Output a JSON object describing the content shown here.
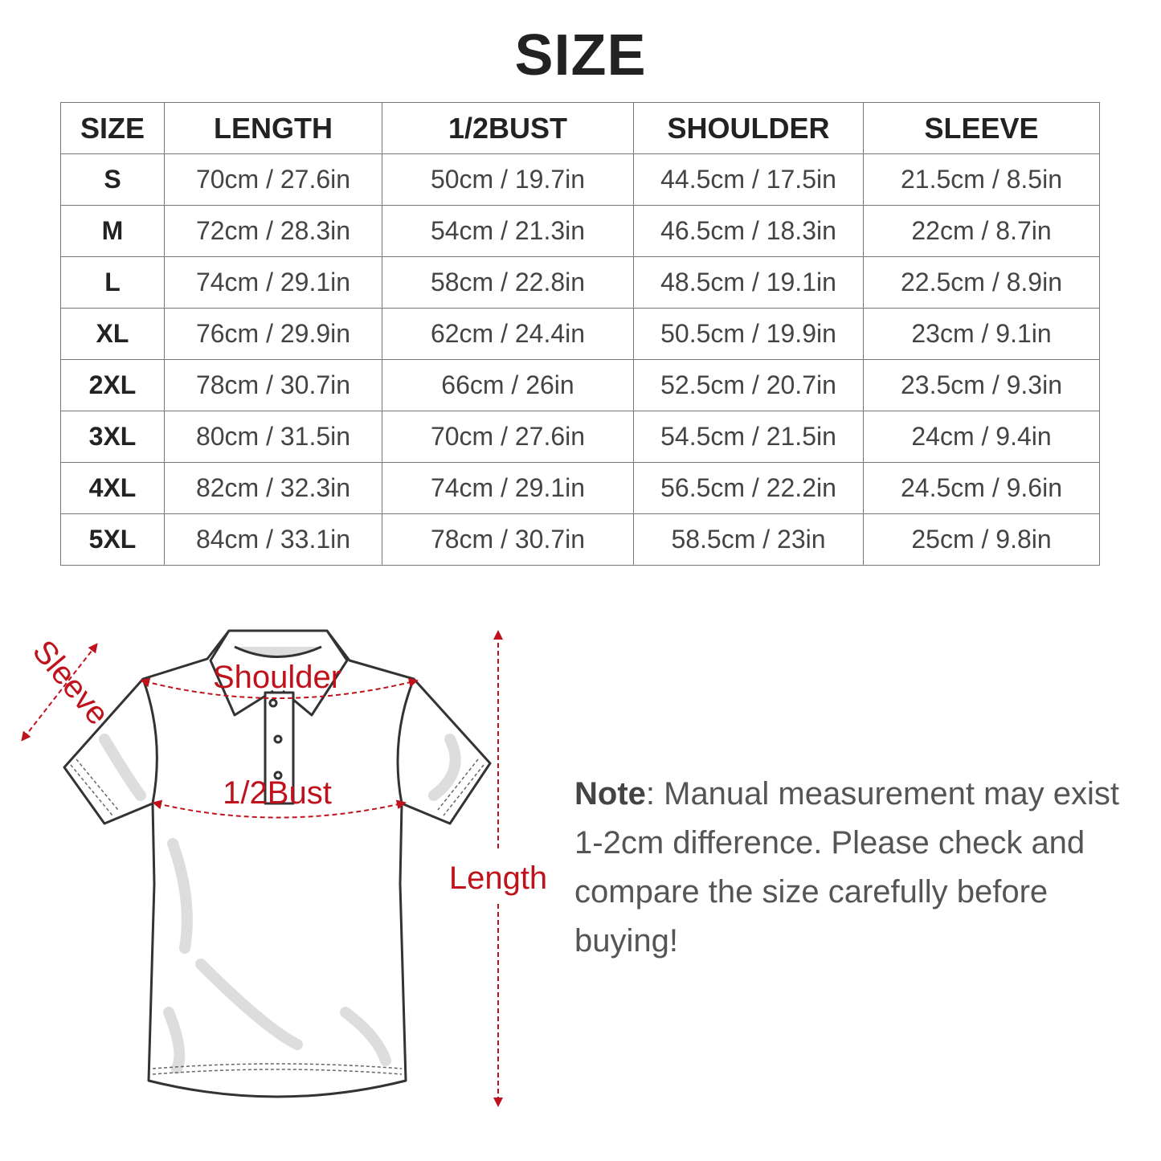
{
  "title": "SIZE",
  "table": {
    "headers": [
      "SIZE",
      "LENGTH",
      "1/2BUST",
      "SHOULDER",
      "SLEEVE"
    ],
    "rows": [
      [
        "S",
        "70cm / 27.6in",
        "50cm / 19.7in",
        "44.5cm / 17.5in",
        "21.5cm / 8.5in"
      ],
      [
        "M",
        "72cm / 28.3in",
        "54cm / 21.3in",
        "46.5cm / 18.3in",
        "22cm / 8.7in"
      ],
      [
        "L",
        "74cm / 29.1in",
        "58cm / 22.8in",
        "48.5cm / 19.1in",
        "22.5cm / 8.9in"
      ],
      [
        "XL",
        "76cm / 29.9in",
        "62cm / 24.4in",
        "50.5cm / 19.9in",
        "23cm / 9.1in"
      ],
      [
        "2XL",
        "78cm / 30.7in",
        "66cm / 26in",
        "52.5cm / 20.7in",
        "23.5cm / 9.3in"
      ],
      [
        "3XL",
        "80cm / 31.5in",
        "70cm / 27.6in",
        "54.5cm / 21.5in",
        "24cm / 9.4in"
      ],
      [
        "4XL",
        "82cm / 32.3in",
        "74cm / 29.1in",
        "56.5cm / 22.2in",
        "24.5cm / 9.6in"
      ],
      [
        "5XL",
        "84cm / 33.1in",
        "78cm / 30.7in",
        "58.5cm / 23in",
        "25cm / 9.8in"
      ]
    ]
  },
  "diagram": {
    "labels": {
      "sleeve": "Sleeve",
      "shoulder": "Shoulder",
      "bust": "1/2Bust",
      "length": "Length"
    },
    "accent_color": "#c0121c"
  },
  "note": {
    "bold": "Note",
    "text": ": Manual measurement may exist 1-2cm difference. Please check and compare the size carefully before buying!"
  }
}
